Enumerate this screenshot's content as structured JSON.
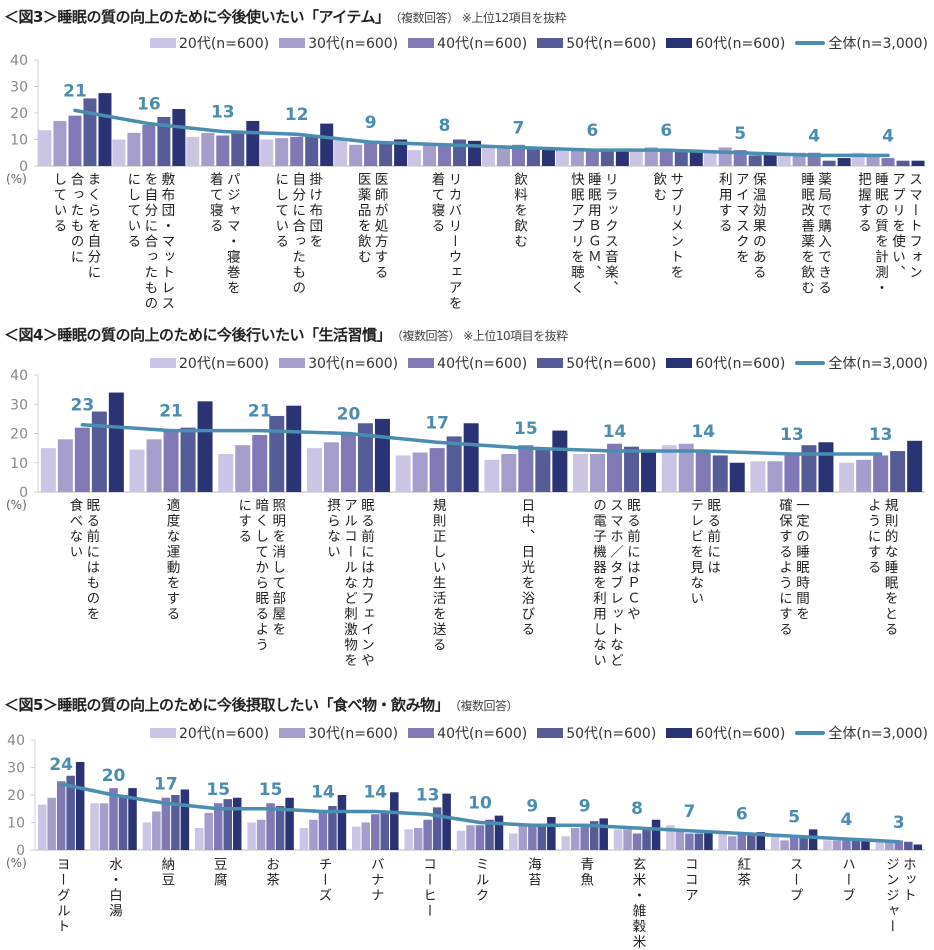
{
  "colors": {
    "s20": "#cbc4e4",
    "s30": "#a59dcc",
    "s40": "#8179b6",
    "s50": "#565c98",
    "s60": "#2a3373",
    "total": "#4a8db0",
    "axis": "#d0d0d0",
    "tick": "#888888"
  },
  "legend": [
    "20代(n=600)",
    "30代(n=600)",
    "40代(n=600)",
    "50代(n=600)",
    "60代(n=600)",
    "全体(n=3,000)"
  ],
  "unit_label": "(%)",
  "chart_data": [
    {
      "type": "bar",
      "title": "＜図3＞睡眠の質の向上のために今後使いたい「アイテム」",
      "note": "（複数回答） ※上位12項目を抜粋",
      "ylim": [
        0,
        40
      ],
      "yticks": [
        0,
        10,
        20,
        30,
        40
      ],
      "categories": [
        "まくらを自分に\n合ったものに\nしている",
        "敷布団・マットレス\nを自分に合ったもの\nにしている",
        "パジャマ・寝巻を\n着て寝る",
        "掛け布団を\n自分に合ったもの\nにしている",
        "医師が処方する\n医薬品を飲む",
        "リカバリーウェアを\n着て寝る",
        "飲料を飲む",
        "リラックス音楽、\n睡眠用ＢＧＭ、\n快眠アプリを聴く",
        "サプリメントを\n飲む",
        "保温効果のある\nアイマスクを\n利用する",
        "薬局で購入できる\n睡眠改善薬を飲む",
        "スマートフォン\nアプリを使い、\n睡眠の質を計測・\n把握する"
      ],
      "series": [
        {
          "name": "20代(n=600)",
          "values": [
            13.5,
            10,
            11,
            10,
            10,
            6,
            7,
            6,
            6,
            6,
            5,
            5
          ]
        },
        {
          "name": "30代(n=600)",
          "values": [
            17,
            12.5,
            12.5,
            10.5,
            8,
            8,
            7,
            6,
            7,
            7,
            5,
            4
          ]
        },
        {
          "name": "40代(n=600)",
          "values": [
            19,
            15.5,
            11.5,
            11,
            9,
            8,
            8,
            6,
            6,
            6,
            5,
            3
          ]
        },
        {
          "name": "50代(n=600)",
          "values": [
            25.5,
            18.5,
            13,
            11,
            9,
            10,
            7,
            6,
            6,
            4,
            2,
            2
          ]
        },
        {
          "name": "60代(n=600)",
          "values": [
            27.5,
            21.5,
            17,
            16,
            10,
            9.5,
            7,
            6,
            6,
            5,
            3,
            2
          ]
        }
      ],
      "total": {
        "name": "全体(n=3,000)",
        "values": [
          21,
          16,
          13,
          12,
          9,
          8,
          7,
          6,
          6,
          5,
          4,
          4
        ]
      }
    },
    {
      "type": "bar",
      "title": "＜図4＞睡眠の質の向上のために今後行いたい「生活習慣」",
      "note": "（複数回答） ※上位10項目を抜粋",
      "ylim": [
        0,
        40
      ],
      "yticks": [
        0,
        10,
        20,
        30,
        40
      ],
      "categories": [
        "眠る前にはものを\n食べない",
        "適度な運動をする",
        "照明を消して部屋を\n暗くしてから眠るよう\nにする",
        "眠る前にはカフェインや\nアルコールなど刺激物を\n摂らない",
        "規則正しい生活を送る",
        "日中、日光を浴びる",
        "眠る前にはＰＣや\nスマホ／タブレットなど\nの電子機器を利用しない",
        "眠る前には\nテレビを見ない",
        "一定の睡眠時間を\n確保するようにする",
        "規則的な睡眠をとる\nようにする"
      ],
      "series": [
        {
          "name": "20代(n=600)",
          "values": [
            15,
            14.5,
            13,
            15,
            12.5,
            11,
            13,
            16,
            10.5,
            10
          ]
        },
        {
          "name": "30代(n=600)",
          "values": [
            18,
            18,
            16,
            17,
            13.5,
            13,
            13,
            16.5,
            10.5,
            11
          ]
        },
        {
          "name": "40代(n=600)",
          "values": [
            22,
            21.5,
            19.5,
            20,
            15,
            16,
            16.5,
            14,
            12.5,
            12.5
          ]
        },
        {
          "name": "50代(n=600)",
          "values": [
            27.5,
            22,
            26,
            23.5,
            19,
            15,
            15.5,
            12.5,
            16,
            14
          ]
        },
        {
          "name": "60代(n=600)",
          "values": [
            34,
            31,
            29.5,
            25,
            23.5,
            21,
            14,
            10,
            17,
            17.5
          ]
        }
      ],
      "total": {
        "name": "全体(n=3,000)",
        "values": [
          23,
          21,
          21,
          20,
          17,
          15,
          14,
          14,
          13,
          13
        ]
      }
    },
    {
      "type": "bar",
      "title": "＜図5＞睡眠の質の向上のために今後摂取したい「食べ物・飲み物」",
      "note": "（複数回答）",
      "ylim": [
        0,
        40
      ],
      "yticks": [
        0,
        10,
        20,
        30,
        40
      ],
      "categories": [
        "ヨーグルト",
        "水・白湯",
        "納豆",
        "豆腐",
        "お茶",
        "チーズ",
        "バナナ",
        "コーヒー",
        "ミルク",
        "海苔",
        "青魚",
        "玄米・雑穀米",
        "ココア",
        "紅茶",
        "スープ",
        "ハーブ",
        "ホット\nジンジャー"
      ],
      "series": [
        {
          "name": "20代(n=600)",
          "values": [
            16.5,
            17,
            10,
            8,
            10,
            8,
            8.5,
            7.5,
            7,
            6,
            5,
            7.5,
            9,
            6,
            5,
            3.5,
            3
          ]
        },
        {
          "name": "30代(n=600)",
          "values": [
            19,
            17,
            14,
            13.5,
            11,
            11,
            10,
            8,
            9,
            9,
            8,
            7.5,
            7,
            5,
            3.5,
            3.5,
            3
          ]
        },
        {
          "name": "40代(n=600)",
          "values": [
            25,
            22.5,
            19,
            17,
            17,
            13.5,
            13,
            11,
            9,
            9,
            9,
            6,
            6,
            5.5,
            4.5,
            4.5,
            3.5
          ]
        },
        {
          "name": "50代(n=600)",
          "values": [
            27,
            20,
            20,
            18.5,
            16,
            16,
            14,
            15.5,
            11,
            9,
            10.5,
            8,
            6,
            6,
            5,
            4,
            3
          ]
        },
        {
          "name": "60代(n=600)",
          "values": [
            32,
            22.5,
            22,
            19,
            19,
            20,
            21,
            20.5,
            12.5,
            12,
            11.5,
            11,
            6.5,
            6.5,
            7.5,
            3.5,
            2
          ]
        }
      ],
      "total": {
        "name": "全体(n=3,000)",
        "values": [
          24,
          20,
          17,
          15,
          15,
          14,
          14,
          13,
          10,
          9,
          9,
          8,
          7,
          6,
          5,
          4,
          3
        ]
      }
    }
  ]
}
